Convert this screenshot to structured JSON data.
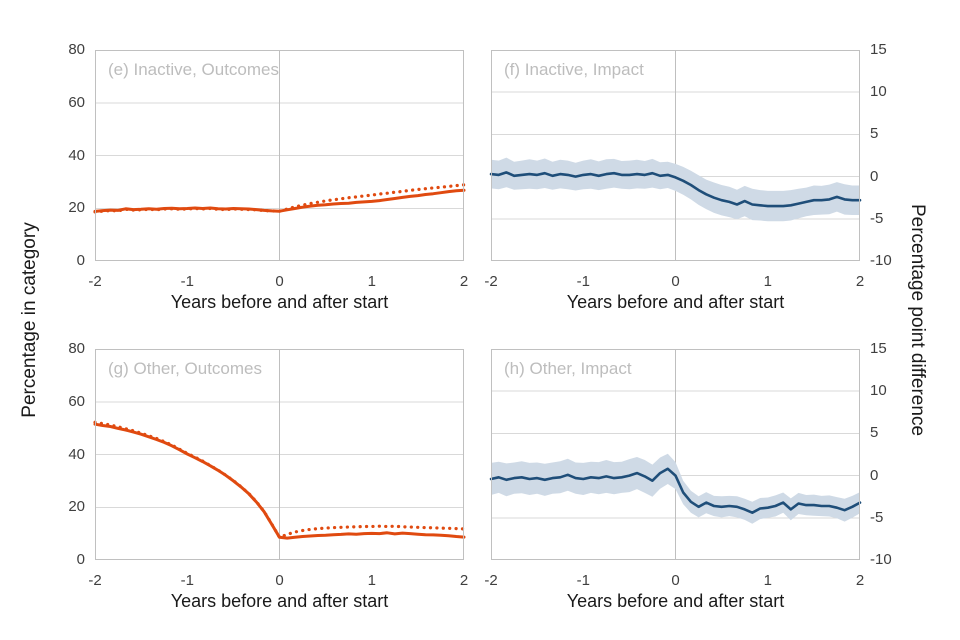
{
  "figure": {
    "x_axis_label": "Years before and after start",
    "left_axis_label": "Percentage in category",
    "right_axis_label": "Percentage point difference",
    "colors": {
      "outcome_line": "#E04A10",
      "impact_line": "#1F4E79",
      "impact_band": "#CFDAE6",
      "gridline": "#D9D9D9",
      "frame": "#C0C0C0",
      "zero_line": "#BFBFBF",
      "panel_title_text": "#BDBDBD",
      "tick_text": "#3F3F3F",
      "axis_text": "#1A1A1A"
    }
  },
  "chart_data": {
    "type": "line",
    "x_ticks": [
      -2,
      -1,
      0,
      1,
      2
    ],
    "xlim": [
      -2,
      2
    ],
    "x": [
      -2,
      -1.917,
      -1.833,
      -1.75,
      -1.667,
      -1.583,
      -1.5,
      -1.417,
      -1.333,
      -1.25,
      -1.167,
      -1.083,
      -1,
      -0.917,
      -0.833,
      -0.75,
      -0.667,
      -0.583,
      -0.5,
      -0.417,
      -0.333,
      -0.25,
      -0.167,
      -0.083,
      0,
      0.083,
      0.167,
      0.25,
      0.333,
      0.417,
      0.5,
      0.583,
      0.667,
      0.75,
      0.833,
      0.917,
      1,
      1.083,
      1.167,
      1.25,
      1.333,
      1.417,
      1.5,
      1.583,
      1.667,
      1.75,
      1.833,
      1.917,
      2
    ],
    "panels": [
      {
        "key": "e",
        "title": "(e) Inactive, Outcomes",
        "y_axis": "left",
        "ylim": [
          0,
          80
        ],
        "y_ticks": [
          80,
          60,
          40,
          20,
          0
        ],
        "series": [
          {
            "name": "outcome-solid-line",
            "style": "solid",
            "color": "#E04A10",
            "values": [
              18.8,
              19.1,
              19.3,
              19.2,
              19.8,
              19.5,
              19.6,
              19.8,
              19.6,
              19.9,
              20.0,
              19.8,
              19.9,
              20.1,
              19.9,
              20.1,
              19.8,
              19.7,
              19.9,
              19.8,
              19.7,
              19.5,
              19.2,
              19.0,
              18.9,
              19.4,
              19.9,
              20.4,
              20.8,
              21.1,
              21.3,
              21.6,
              21.8,
              21.9,
              22.2,
              22.4,
              22.6,
              22.9,
              23.3,
              23.7,
              24.1,
              24.5,
              24.8,
              25.2,
              25.5,
              25.9,
              26.3,
              26.6,
              26.8
            ]
          },
          {
            "name": "outcome-dotted-line",
            "style": "dotted",
            "color": "#E04A10",
            "values": [
              18.6,
              18.9,
              19.1,
              19.0,
              19.6,
              19.3,
              19.4,
              19.6,
              19.4,
              19.7,
              19.8,
              19.6,
              19.7,
              19.9,
              19.7,
              19.9,
              19.6,
              19.5,
              19.7,
              19.6,
              19.5,
              19.4,
              19.1,
              19.0,
              18.9,
              19.7,
              20.5,
              21.2,
              21.8,
              22.3,
              22.8,
              23.2,
              23.6,
              24.0,
              24.3,
              24.7,
              25.0,
              25.4,
              25.7,
              26.1,
              26.4,
              26.8,
              27.1,
              27.4,
              27.7,
              28.0,
              28.3,
              28.6,
              28.9
            ]
          }
        ]
      },
      {
        "key": "f",
        "title": "(f) Inactive, Impact",
        "y_axis": "right",
        "ylim": [
          -10,
          15
        ],
        "y_ticks": [
          15,
          10,
          5,
          0,
          -5,
          -10
        ],
        "series": [
          {
            "name": "impact-line",
            "style": "solid",
            "color": "#1F4E79",
            "band_color": "#CFDAE6",
            "values": [
              0.3,
              0.2,
              0.5,
              0.1,
              0.2,
              0.3,
              0.2,
              0.4,
              0.1,
              0.3,
              0.2,
              0.0,
              0.2,
              0.3,
              0.1,
              0.3,
              0.4,
              0.2,
              0.2,
              0.3,
              0.2,
              0.4,
              0.1,
              0.2,
              -0.1,
              -0.5,
              -1.0,
              -1.6,
              -2.1,
              -2.5,
              -2.8,
              -3.0,
              -3.3,
              -2.9,
              -3.3,
              -3.4,
              -3.5,
              -3.5,
              -3.5,
              -3.4,
              -3.2,
              -3.0,
              -2.8,
              -2.8,
              -2.7,
              -2.4,
              -2.7,
              -2.8,
              -2.8
            ],
            "band_halfwidth": [
              1.7,
              1.7,
              1.75,
              1.65,
              1.7,
              1.75,
              1.7,
              1.75,
              1.65,
              1.7,
              1.7,
              1.65,
              1.7,
              1.75,
              1.7,
              1.75,
              1.7,
              1.65,
              1.7,
              1.7,
              1.65,
              1.7,
              1.6,
              1.55,
              1.6,
              1.65,
              1.7,
              1.75,
              1.75,
              1.8,
              1.8,
              1.8,
              1.75,
              1.8,
              1.85,
              1.8,
              1.8,
              1.8,
              1.8,
              1.8,
              1.75,
              1.7,
              1.75,
              1.7,
              1.75,
              1.75,
              1.8,
              1.75,
              1.75
            ]
          }
        ]
      },
      {
        "key": "g",
        "title": "(g) Other, Outcomes",
        "y_axis": "left",
        "ylim": [
          0,
          80
        ],
        "y_ticks": [
          80,
          60,
          40,
          20,
          0
        ],
        "series": [
          {
            "name": "outcome-solid-line",
            "style": "solid",
            "color": "#E04A10",
            "values": [
              51.5,
              51.0,
              50.6,
              49.9,
              49.3,
              48.5,
              47.7,
              46.7,
              45.7,
              44.6,
              43.3,
              41.8,
              40.2,
              38.8,
              37.3,
              35.7,
              34.0,
              32.1,
              30.0,
              27.7,
              25.1,
              22.0,
              18.3,
              13.5,
              8.6,
              8.3,
              8.6,
              8.9,
              9.1,
              9.3,
              9.4,
              9.6,
              9.7,
              9.9,
              9.8,
              10.0,
              10.1,
              10.0,
              10.3,
              9.9,
              10.2,
              10.0,
              9.8,
              9.6,
              9.5,
              9.4,
              9.2,
              8.9,
              8.7
            ]
          },
          {
            "name": "outcome-dotted-line",
            "style": "dotted",
            "color": "#E04A10",
            "values": [
              52.2,
              51.7,
              51.2,
              50.5,
              49.8,
              49.0,
              48.1,
              47.1,
              46.1,
              44.9,
              43.6,
              42.0,
              40.4,
              39.0,
              37.5,
              35.8,
              34.1,
              32.2,
              30.1,
              27.8,
              25.2,
              22.1,
              18.4,
              13.6,
              8.6,
              9.7,
              10.6,
              11.2,
              11.6,
              11.9,
              12.1,
              12.3,
              12.4,
              12.5,
              12.6,
              12.7,
              12.7,
              12.8,
              12.7,
              12.8,
              12.6,
              12.5,
              12.4,
              12.3,
              12.2,
              12.1,
              12.0,
              11.9,
              11.8
            ]
          }
        ]
      },
      {
        "key": "h",
        "title": "(h) Other, Impact",
        "y_axis": "right",
        "ylim": [
          -10,
          15
        ],
        "y_ticks": [
          15,
          10,
          5,
          0,
          -5,
          -10
        ],
        "series": [
          {
            "name": "impact-line",
            "style": "solid",
            "color": "#1F4E79",
            "band_color": "#CFDAE6",
            "values": [
              -0.4,
              -0.2,
              -0.5,
              -0.3,
              -0.2,
              -0.4,
              -0.3,
              -0.5,
              -0.3,
              -0.2,
              0.1,
              -0.3,
              -0.4,
              -0.2,
              -0.3,
              -0.1,
              -0.3,
              -0.2,
              0.0,
              0.3,
              -0.1,
              -0.6,
              0.3,
              0.8,
              0.0,
              -2.0,
              -3.1,
              -3.7,
              -3.2,
              -3.6,
              -3.7,
              -3.6,
              -3.7,
              -4.0,
              -4.4,
              -3.9,
              -3.8,
              -3.6,
              -3.2,
              -4.0,
              -3.3,
              -3.5,
              -3.5,
              -3.6,
              -3.6,
              -3.8,
              -4.1,
              -3.7,
              -3.2
            ],
            "band_halfwidth": [
              1.9,
              1.85,
              1.95,
              1.85,
              1.9,
              1.9,
              1.85,
              1.9,
              1.85,
              1.9,
              1.9,
              1.85,
              1.9,
              1.85,
              1.9,
              1.95,
              1.9,
              1.85,
              1.95,
              1.9,
              1.95,
              1.9,
              1.85,
              1.8,
              1.6,
              1.4,
              1.3,
              1.25,
              1.25,
              1.2,
              1.25,
              1.2,
              1.25,
              1.25,
              1.3,
              1.25,
              1.2,
              1.25,
              1.2,
              1.3,
              1.25,
              1.2,
              1.25,
              1.2,
              1.25,
              1.25,
              1.35,
              1.3,
              1.25
            ]
          }
        ]
      }
    ]
  }
}
